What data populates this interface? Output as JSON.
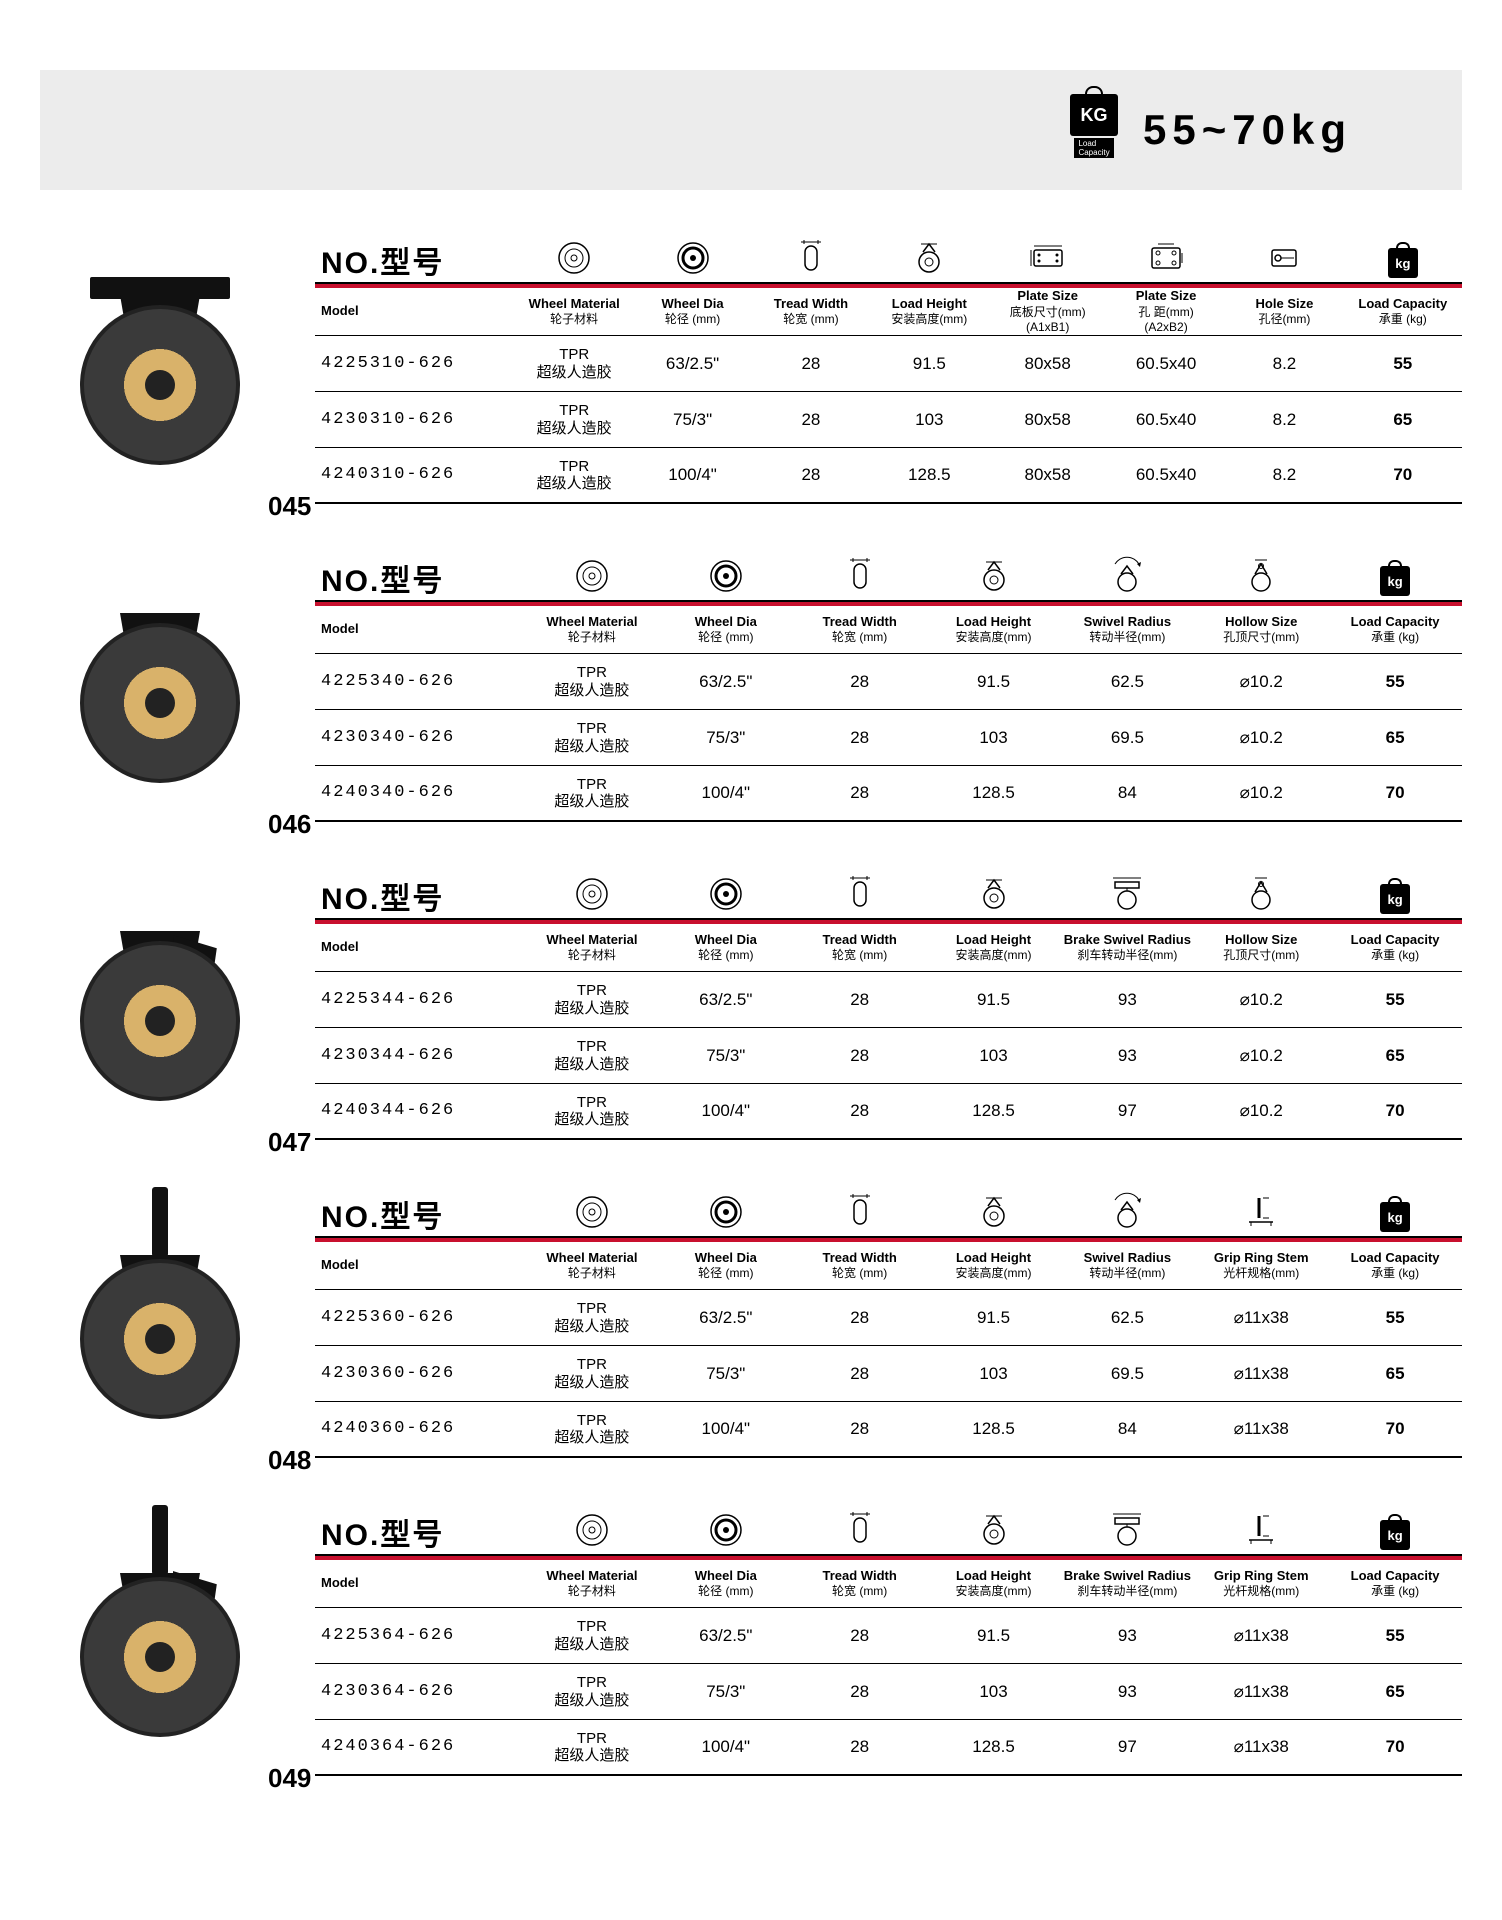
{
  "header": {
    "kg_label": "KG",
    "capacity_label": "Load\nCapacity",
    "range": "55~70kg"
  },
  "common": {
    "no_label": "NO.型号",
    "model_hdr_en": "Model",
    "material_en": "Wheel Material",
    "material_cn": "轮子材料",
    "dia_en": "Wheel Dia",
    "dia_cn": "轮径 (mm)",
    "tread_en": "Tread Width",
    "tread_cn": "轮宽 (mm)",
    "height_en": "Load Height",
    "height_cn": "安装高度(mm)",
    "plate1_en": "Plate Size",
    "plate1_cn": "底板尺寸(mm)\n(A1xB1)",
    "plate2_en": "Plate Size",
    "plate2_cn": "孔 距(mm)\n(A2xB2)",
    "hole_en": "Hole Size",
    "hole_cn": "孔径(mm)",
    "swivel_en": "Swivel Radius",
    "swivel_cn": "转动半径(mm)",
    "brake_swivel_en": "Brake Swivel Radius",
    "brake_swivel_cn": "刹车转动半径(mm)",
    "hollow_en": "Hollow Size",
    "hollow_cn": "孔顶尺寸(mm)",
    "grip_en": "Grip Ring Stem",
    "grip_cn": "光杆规格(mm)",
    "cap_en": "Load Capacity",
    "cap_cn": "承重 (kg)",
    "mat_line1": "TPR",
    "mat_line2": "超级人造胶"
  },
  "sections": [
    {
      "num": "045",
      "type": "plate",
      "headers": [
        "material",
        "dia",
        "tread",
        "height",
        "plate1",
        "plate2",
        "hole",
        "cap"
      ],
      "rows": [
        {
          "model": "4225310-626",
          "dia": "63/2.5\"",
          "tread": "28",
          "h": "91.5",
          "a": "80x58",
          "b": "60.5x40",
          "c": "8.2",
          "cap": "55"
        },
        {
          "model": "4230310-626",
          "dia": "75/3\"",
          "tread": "28",
          "h": "103",
          "a": "80x58",
          "b": "60.5x40",
          "c": "8.2",
          "cap": "65"
        },
        {
          "model": "4240310-626",
          "dia": "100/4\"",
          "tread": "28",
          "h": "128.5",
          "a": "80x58",
          "b": "60.5x40",
          "c": "8.2",
          "cap": "70"
        }
      ]
    },
    {
      "num": "046",
      "type": "bolt",
      "headers": [
        "material",
        "dia",
        "tread",
        "height",
        "swivel",
        "hollow",
        "cap"
      ],
      "rows": [
        {
          "model": "4225340-626",
          "dia": "63/2.5\"",
          "tread": "28",
          "h": "91.5",
          "a": "62.5",
          "b": "⌀10.2",
          "cap": "55"
        },
        {
          "model": "4230340-626",
          "dia": "75/3\"",
          "tread": "28",
          "h": "103",
          "a": "69.5",
          "b": "⌀10.2",
          "cap": "65"
        },
        {
          "model": "4240340-626",
          "dia": "100/4\"",
          "tread": "28",
          "h": "128.5",
          "a": "84",
          "b": "⌀10.2",
          "cap": "70"
        }
      ]
    },
    {
      "num": "047",
      "type": "bolt_brake",
      "headers": [
        "material",
        "dia",
        "tread",
        "height",
        "brake_swivel",
        "hollow",
        "cap"
      ],
      "rows": [
        {
          "model": "4225344-626",
          "dia": "63/2.5\"",
          "tread": "28",
          "h": "91.5",
          "a": "93",
          "b": "⌀10.2",
          "cap": "55"
        },
        {
          "model": "4230344-626",
          "dia": "75/3\"",
          "tread": "28",
          "h": "103",
          "a": "93",
          "b": "⌀10.2",
          "cap": "65"
        },
        {
          "model": "4240344-626",
          "dia": "100/4\"",
          "tread": "28",
          "h": "128.5",
          "a": "97",
          "b": "⌀10.2",
          "cap": "70"
        }
      ]
    },
    {
      "num": "048",
      "type": "stem",
      "headers": [
        "material",
        "dia",
        "tread",
        "height",
        "swivel",
        "grip",
        "cap"
      ],
      "rows": [
        {
          "model": "4225360-626",
          "dia": "63/2.5\"",
          "tread": "28",
          "h": "91.5",
          "a": "62.5",
          "b": "⌀11x38",
          "cap": "55"
        },
        {
          "model": "4230360-626",
          "dia": "75/3\"",
          "tread": "28",
          "h": "103",
          "a": "69.5",
          "b": "⌀11x38",
          "cap": "65"
        },
        {
          "model": "4240360-626",
          "dia": "100/4\"",
          "tread": "28",
          "h": "128.5",
          "a": "84",
          "b": "⌀11x38",
          "cap": "70"
        }
      ]
    },
    {
      "num": "049",
      "type": "stem_brake",
      "headers": [
        "material",
        "dia",
        "tread",
        "height",
        "brake_swivel",
        "grip",
        "cap"
      ],
      "rows": [
        {
          "model": "4225364-626",
          "dia": "63/2.5\"",
          "tread": "28",
          "h": "91.5",
          "a": "93",
          "b": "⌀11x38",
          "cap": "55"
        },
        {
          "model": "4230364-626",
          "dia": "75/3\"",
          "tread": "28",
          "h": "103",
          "a": "93",
          "b": "⌀11x38",
          "cap": "65"
        },
        {
          "model": "4240364-626",
          "dia": "100/4\"",
          "tread": "28",
          "h": "128.5",
          "a": "97",
          "b": "⌀11x38",
          "cap": "70"
        }
      ]
    }
  ]
}
